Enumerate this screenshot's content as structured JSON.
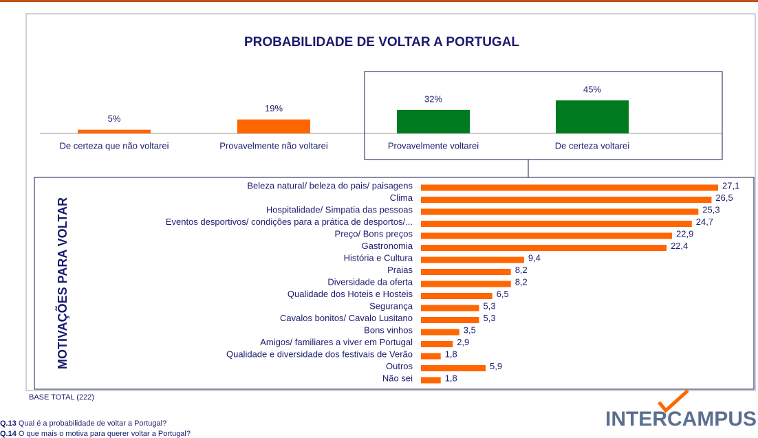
{
  "chart_data": [
    {
      "type": "bar",
      "title": "PROBABILIDADE DE VOLTAR A PORTUGAL",
      "categories": [
        "De certeza que não voltarei",
        "Provavelmente não voltarei",
        "Provavelmente voltarei",
        "De certeza voltarei"
      ],
      "values": [
        5,
        19,
        32,
        45
      ],
      "value_labels": [
        "5%",
        "19%",
        "32%",
        "45%"
      ],
      "colors": [
        "#ff6600",
        "#ff6600",
        "#007a1e",
        "#007a1e"
      ]
    },
    {
      "type": "bar",
      "orientation": "horizontal",
      "y_label": "MOTIVAÇÕES PARA VOLTAR",
      "categories": [
        "Beleza natural/ beleza do pais/ paisagens",
        "Clima",
        "Hospitalidade/ Simpatia das pessoas",
        "Eventos desportivos/ condições para a prática de desportos/...",
        "Preço/ Bons preços",
        "Gastronomia",
        "História e Cultura",
        "Praias",
        "Diversidade da oferta",
        "Qualidade dos Hoteis e Hosteis",
        "Segurança",
        "Cavalos bonitos/ Cavalo Lusitano",
        "Bons vinhos",
        "Amigos/ familiares a viver em Portugal",
        "Qualidade e diversidade dos festivais de Verão",
        "Outros",
        "Não sei"
      ],
      "values": [
        27.1,
        26.5,
        25.3,
        24.7,
        22.9,
        22.4,
        9.4,
        8.2,
        8.2,
        6.5,
        5.3,
        5.3,
        3.5,
        2.9,
        1.8,
        5.9,
        1.8
      ],
      "value_labels": [
        "27,1",
        "26,5",
        "25,3",
        "24,7",
        "22,9",
        "22,4",
        "9,4",
        "8,2",
        "8,2",
        "6,5",
        "5,3",
        "5,3",
        "3,5",
        "2,9",
        "1,8",
        "5,9",
        "1,8"
      ],
      "color": "#ff6600"
    }
  ],
  "base": "BASE TOTAL (222)",
  "questions": [
    {
      "code": "Q.13",
      "text": " Qual é a probabilidade de voltar a Portugal?"
    },
    {
      "code": "Q.14",
      "text": " O que mais o motiva para querer voltar a Portugal?"
    }
  ],
  "logo": "INTERCAMPUS"
}
